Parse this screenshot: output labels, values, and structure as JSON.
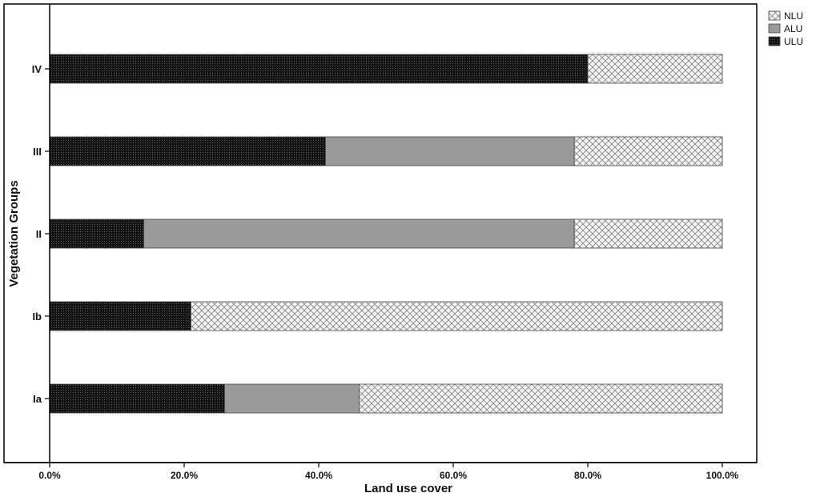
{
  "chart_data": {
    "type": "bar",
    "orientation": "horizontal",
    "stacked": true,
    "title": "",
    "xlabel": "Land use cover",
    "ylabel": "Vegetation Groups",
    "xlim": [
      0,
      100
    ],
    "x_ticks": [
      "0.0%",
      "20.0%",
      "40.0%",
      "60.0%",
      "80.0%",
      "100.0%"
    ],
    "categories": [
      "IV",
      "III",
      "II",
      "Ib",
      "Ia"
    ],
    "series": [
      {
        "name": "ULU",
        "values": [
          80,
          41,
          14,
          21,
          26
        ],
        "color": "#141414",
        "pattern": "dense-dots"
      },
      {
        "name": "ALU",
        "values": [
          0,
          37,
          64,
          0,
          20
        ],
        "color": "#9a9a9a",
        "pattern": "solid"
      },
      {
        "name": "NLU",
        "values": [
          20,
          22,
          22,
          79,
          54
        ],
        "color": "#e6e6e6",
        "pattern": "crosshatch"
      }
    ],
    "legend": {
      "position": "top-right",
      "entries": [
        "NLU",
        "ALU",
        "ULU"
      ]
    },
    "grid": false
  }
}
